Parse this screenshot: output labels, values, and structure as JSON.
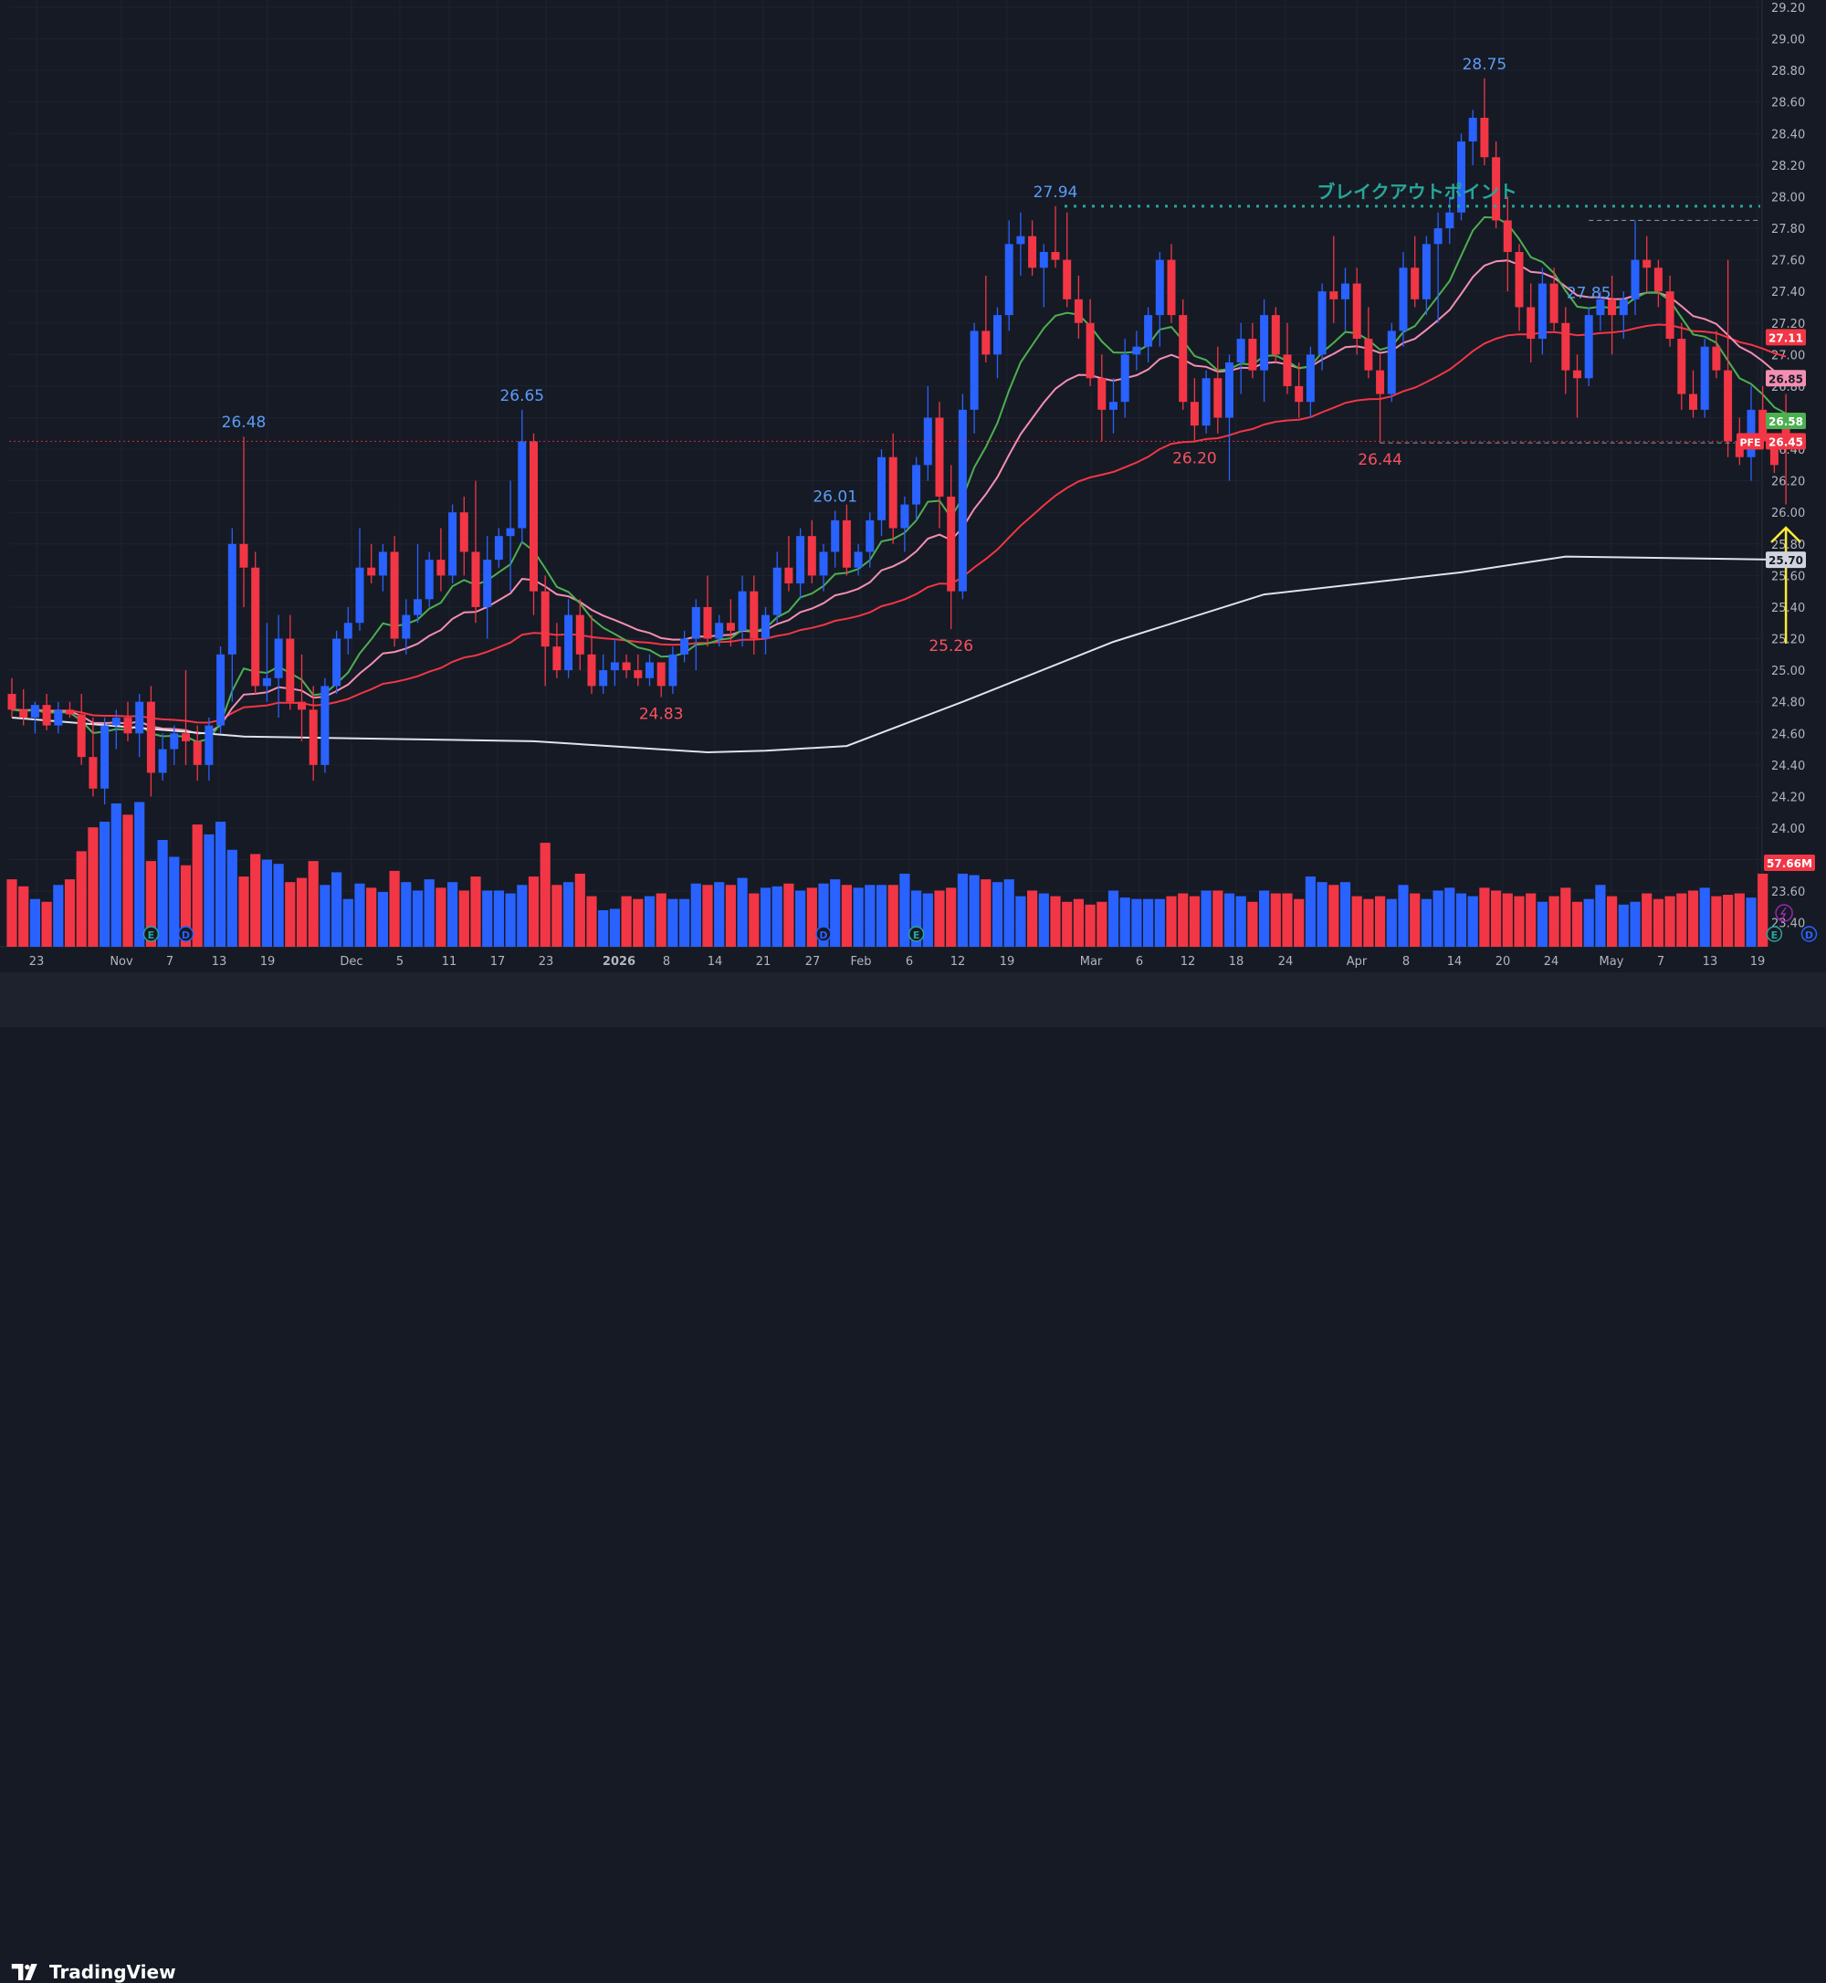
{
  "brand": {
    "name": "TradingView",
    "logo_icon": "tradingview-logo-icon"
  },
  "chart_data": {
    "type": "candlestick",
    "ticker": "PFE",
    "last_price": "26.45",
    "y_range": [
      23.3,
      29.2
    ],
    "y_ticks": [
      "29.20",
      "29.00",
      "28.80",
      "28.60",
      "28.40",
      "28.20",
      "28.00",
      "27.80",
      "27.60",
      "27.40",
      "27.20",
      "27.00",
      "26.80",
      "26.60",
      "26.40",
      "26.20",
      "26.00",
      "25.80",
      "25.60",
      "25.40",
      "25.20",
      "25.00",
      "24.80",
      "24.60",
      "24.40",
      "24.20",
      "24.00",
      "23.80",
      "23.60",
      "23.40"
    ],
    "x_ticks": [
      "23",
      "Nov",
      "7",
      "13",
      "19",
      "Dec",
      "5",
      "11",
      "17",
      "23",
      "2026",
      "8",
      "14",
      "21",
      "27",
      "Feb",
      "6",
      "12",
      "19",
      "Mar",
      "6",
      "12",
      "18",
      "24",
      "Apr",
      "8",
      "14",
      "20",
      "24",
      "May",
      "7",
      "13",
      "19"
    ],
    "candles": [
      [
        24.85,
        24.95,
        24.7,
        24.75
      ],
      [
        24.75,
        24.88,
        24.65,
        24.7
      ],
      [
        24.7,
        24.8,
        24.6,
        24.78
      ],
      [
        24.78,
        24.85,
        24.62,
        24.65
      ],
      [
        24.65,
        24.8,
        24.6,
        24.75
      ],
      [
        24.75,
        24.8,
        24.7,
        24.72
      ],
      [
        24.72,
        24.85,
        24.4,
        24.45
      ],
      [
        24.45,
        24.7,
        24.2,
        24.25
      ],
      [
        24.25,
        24.7,
        24.15,
        24.65
      ],
      [
        24.65,
        24.75,
        24.5,
        24.7
      ],
      [
        24.7,
        24.8,
        24.55,
        24.6
      ],
      [
        24.6,
        24.85,
        24.45,
        24.8
      ],
      [
        24.8,
        24.9,
        24.2,
        24.35
      ],
      [
        24.35,
        24.6,
        24.3,
        24.5
      ],
      [
        24.5,
        24.65,
        24.4,
        24.6
      ],
      [
        24.6,
        25.0,
        24.4,
        24.55
      ],
      [
        24.55,
        24.65,
        24.3,
        24.4
      ],
      [
        24.4,
        24.7,
        24.3,
        24.65
      ],
      [
        24.65,
        25.15,
        24.6,
        25.1
      ],
      [
        25.1,
        25.9,
        24.8,
        25.8
      ],
      [
        25.8,
        26.48,
        25.4,
        25.65
      ],
      [
        25.65,
        25.75,
        24.85,
        24.9
      ],
      [
        24.9,
        25.3,
        24.8,
        24.95
      ],
      [
        24.95,
        25.35,
        24.7,
        25.2
      ],
      [
        25.2,
        25.35,
        24.75,
        24.8
      ],
      [
        24.8,
        25.1,
        24.55,
        24.75
      ],
      [
        24.75,
        24.9,
        24.3,
        24.4
      ],
      [
        24.4,
        24.95,
        24.35,
        24.9
      ],
      [
        24.9,
        25.25,
        24.85,
        25.2
      ],
      [
        25.2,
        25.4,
        25.1,
        25.3
      ],
      [
        25.3,
        25.9,
        25.25,
        25.65
      ],
      [
        25.65,
        25.8,
        25.55,
        25.6
      ],
      [
        25.6,
        25.8,
        25.5,
        25.75
      ],
      [
        25.75,
        25.85,
        25.15,
        25.2
      ],
      [
        25.2,
        25.45,
        25.1,
        25.35
      ],
      [
        25.35,
        25.8,
        25.3,
        25.45
      ],
      [
        25.45,
        25.75,
        25.4,
        25.7
      ],
      [
        25.7,
        25.9,
        25.5,
        25.6
      ],
      [
        25.6,
        26.05,
        25.55,
        26.0
      ],
      [
        26.0,
        26.1,
        25.6,
        25.75
      ],
      [
        25.75,
        26.2,
        25.3,
        25.4
      ],
      [
        25.4,
        25.85,
        25.2,
        25.7
      ],
      [
        25.7,
        25.9,
        25.65,
        25.85
      ],
      [
        25.85,
        26.2,
        25.5,
        25.9
      ],
      [
        25.9,
        26.65,
        25.8,
        26.45
      ],
      [
        26.45,
        26.5,
        25.35,
        25.5
      ],
      [
        25.5,
        25.6,
        24.9,
        25.15
      ],
      [
        25.15,
        25.3,
        24.95,
        25.0
      ],
      [
        25.0,
        25.45,
        24.95,
        25.35
      ],
      [
        25.35,
        25.45,
        25.0,
        25.1
      ],
      [
        25.1,
        25.35,
        24.85,
        24.9
      ],
      [
        24.9,
        25.1,
        24.85,
        25.0
      ],
      [
        25.0,
        25.2,
        24.9,
        25.05
      ],
      [
        25.05,
        25.1,
        24.95,
        25.0
      ],
      [
        25.0,
        25.1,
        24.9,
        24.95
      ],
      [
        24.95,
        25.1,
        24.9,
        25.05
      ],
      [
        25.05,
        25.0,
        24.83,
        24.9
      ],
      [
        24.9,
        25.15,
        24.85,
        25.1
      ],
      [
        25.1,
        25.25,
        25.05,
        25.2
      ],
      [
        25.2,
        25.45,
        25.0,
        25.4
      ],
      [
        25.4,
        25.6,
        25.15,
        25.2
      ],
      [
        25.2,
        25.35,
        25.15,
        25.3
      ],
      [
        25.3,
        25.45,
        25.15,
        25.25
      ],
      [
        25.25,
        25.6,
        25.15,
        25.5
      ],
      [
        25.5,
        25.6,
        25.1,
        25.2
      ],
      [
        25.2,
        25.4,
        25.1,
        25.35
      ],
      [
        25.35,
        25.75,
        25.3,
        25.65
      ],
      [
        25.65,
        25.85,
        25.5,
        25.55
      ],
      [
        25.55,
        25.9,
        25.45,
        25.85
      ],
      [
        25.85,
        25.95,
        25.55,
        25.6
      ],
      [
        25.6,
        25.8,
        25.5,
        25.75
      ],
      [
        25.75,
        26.01,
        25.65,
        25.95
      ],
      [
        25.95,
        26.05,
        25.6,
        25.65
      ],
      [
        25.65,
        25.8,
        25.6,
        25.75
      ],
      [
        25.75,
        26.0,
        25.65,
        25.95
      ],
      [
        25.95,
        26.4,
        25.85,
        26.35
      ],
      [
        26.35,
        26.5,
        25.8,
        25.9
      ],
      [
        25.9,
        26.1,
        25.75,
        26.05
      ],
      [
        26.05,
        26.35,
        25.95,
        26.3
      ],
      [
        26.3,
        26.8,
        26.2,
        26.6
      ],
      [
        26.6,
        26.7,
        25.9,
        26.1
      ],
      [
        26.1,
        26.3,
        25.26,
        25.5
      ],
      [
        25.5,
        26.75,
        25.45,
        26.65
      ],
      [
        26.65,
        27.2,
        26.5,
        27.15
      ],
      [
        27.15,
        27.5,
        26.95,
        27.0
      ],
      [
        27.0,
        27.3,
        26.85,
        27.25
      ],
      [
        27.25,
        27.85,
        27.15,
        27.7
      ],
      [
        27.7,
        27.9,
        27.5,
        27.75
      ],
      [
        27.75,
        27.85,
        27.5,
        27.55
      ],
      [
        27.55,
        27.7,
        27.3,
        27.65
      ],
      [
        27.65,
        27.94,
        27.55,
        27.6
      ],
      [
        27.6,
        27.9,
        27.3,
        27.35
      ],
      [
        27.35,
        27.5,
        27.1,
        27.2
      ],
      [
        27.2,
        27.35,
        26.8,
        26.85
      ],
      [
        26.85,
        27.0,
        26.45,
        26.65
      ],
      [
        26.65,
        26.85,
        26.5,
        26.7
      ],
      [
        26.7,
        27.1,
        26.6,
        27.0
      ],
      [
        27.0,
        27.15,
        26.9,
        27.05
      ],
      [
        27.05,
        27.3,
        26.95,
        27.25
      ],
      [
        27.25,
        27.65,
        27.05,
        27.6
      ],
      [
        27.6,
        27.7,
        27.2,
        27.25
      ],
      [
        27.25,
        27.35,
        26.65,
        26.7
      ],
      [
        26.7,
        26.85,
        26.45,
        26.55
      ],
      [
        26.55,
        26.9,
        26.5,
        26.85
      ],
      [
        26.85,
        27.05,
        26.5,
        26.6
      ],
      [
        26.6,
        27.0,
        26.2,
        26.95
      ],
      [
        26.95,
        27.2,
        26.75,
        27.1
      ],
      [
        27.1,
        27.2,
        26.85,
        26.9
      ],
      [
        26.9,
        27.35,
        26.7,
        27.25
      ],
      [
        27.25,
        27.3,
        26.95,
        27.0
      ],
      [
        27.0,
        27.2,
        26.75,
        26.8
      ],
      [
        26.8,
        26.95,
        26.6,
        26.7
      ],
      [
        26.7,
        27.05,
        26.6,
        27.0
      ],
      [
        27.0,
        27.45,
        26.9,
        27.4
      ],
      [
        27.4,
        27.75,
        27.2,
        27.35
      ],
      [
        27.35,
        27.55,
        27.15,
        27.45
      ],
      [
        27.45,
        27.55,
        27.0,
        27.1
      ],
      [
        27.1,
        27.3,
        26.85,
        26.9
      ],
      [
        26.9,
        27.0,
        26.44,
        26.75
      ],
      [
        26.75,
        27.2,
        26.7,
        27.15
      ],
      [
        27.15,
        27.65,
        27.05,
        27.55
      ],
      [
        27.55,
        27.75,
        27.3,
        27.35
      ],
      [
        27.35,
        27.75,
        27.25,
        27.7
      ],
      [
        27.7,
        27.9,
        27.2,
        27.8
      ],
      [
        27.8,
        28.0,
        27.7,
        27.9
      ],
      [
        27.9,
        28.4,
        27.85,
        28.35
      ],
      [
        28.35,
        28.55,
        28.2,
        28.5
      ],
      [
        28.5,
        28.75,
        28.2,
        28.25
      ],
      [
        28.25,
        28.35,
        27.8,
        27.85
      ],
      [
        27.85,
        28.0,
        27.4,
        27.65
      ],
      [
        27.65,
        27.7,
        27.15,
        27.3
      ],
      [
        27.3,
        27.45,
        26.95,
        27.1
      ],
      [
        27.1,
        27.55,
        27.0,
        27.45
      ],
      [
        27.45,
        27.55,
        27.15,
        27.2
      ],
      [
        27.2,
        27.3,
        26.75,
        26.9
      ],
      [
        26.9,
        27.0,
        26.6,
        26.85
      ],
      [
        26.85,
        27.3,
        26.8,
        27.25
      ],
      [
        27.25,
        27.4,
        27.15,
        27.35
      ],
      [
        27.35,
        27.5,
        27.0,
        27.25
      ],
      [
        27.25,
        27.4,
        27.1,
        27.35
      ],
      [
        27.35,
        27.85,
        27.25,
        27.6
      ],
      [
        27.6,
        27.75,
        27.4,
        27.55
      ],
      [
        27.55,
        27.6,
        27.3,
        27.4
      ],
      [
        27.4,
        27.5,
        27.05,
        27.1
      ],
      [
        27.1,
        27.2,
        26.65,
        26.75
      ],
      [
        26.75,
        26.9,
        26.6,
        26.65
      ],
      [
        26.65,
        27.1,
        26.6,
        27.05
      ],
      [
        27.05,
        27.15,
        26.85,
        26.9
      ],
      [
        26.9,
        27.6,
        26.35,
        26.45
      ],
      [
        26.45,
        26.6,
        26.3,
        26.35
      ],
      [
        26.35,
        26.8,
        26.2,
        26.65
      ],
      [
        26.65,
        26.8,
        26.4,
        26.45
      ],
      [
        26.45,
        26.5,
        26.25,
        26.3
      ],
      [
        26.58,
        26.75,
        26.05,
        26.45
      ]
    ],
    "volume_scale_max_m": 115,
    "volume_m": [
      48,
      43,
      34,
      32,
      44,
      48,
      68,
      85,
      89,
      102,
      94,
      103,
      61,
      76,
      64,
      58,
      87,
      80,
      89,
      69,
      50,
      66,
      62,
      59,
      46,
      49,
      61,
      44,
      53,
      34,
      45,
      42,
      39,
      54,
      46,
      40,
      48,
      42,
      46,
      40,
      50,
      40,
      40,
      38,
      44,
      50,
      74,
      44,
      46,
      52,
      36,
      26,
      27,
      36,
      34,
      36,
      38,
      34,
      34,
      45,
      44,
      46,
      44,
      49,
      38,
      42,
      43,
      45,
      40,
      42,
      45,
      48,
      44,
      42,
      44,
      44,
      44,
      52,
      40,
      38,
      40,
      42,
      52,
      51,
      48,
      46,
      48,
      36,
      40,
      38,
      36,
      32,
      34,
      30,
      32,
      40,
      35,
      34,
      34,
      34,
      36,
      38,
      36,
      40,
      40,
      38,
      36,
      32,
      40,
      38,
      38,
      34,
      50,
      46,
      44,
      46,
      36,
      34,
      36,
      34,
      44,
      38,
      34,
      40,
      42,
      38,
      36,
      42,
      40,
      38,
      36,
      38,
      32,
      36,
      42,
      32,
      34,
      44,
      36,
      30,
      32,
      38,
      34,
      36,
      38,
      40,
      42,
      36,
      37,
      38,
      35,
      52
    ],
    "volume_last_label": "57.66M",
    "moving_averages": [
      {
        "color": "#4caf50",
        "last": "26.58"
      },
      {
        "color": "#f48fb1",
        "last": "26.85"
      },
      {
        "color": "#f23645",
        "last": "27.11"
      },
      {
        "color": "#e0e3eb",
        "last": "25.70"
      }
    ],
    "ma200_points": [
      [
        0,
        24.7
      ],
      [
        20,
        24.58
      ],
      [
        45,
        24.55
      ],
      [
        60,
        24.48
      ],
      [
        65,
        24.49
      ],
      [
        72,
        24.52
      ],
      [
        82,
        24.8
      ],
      [
        95,
        25.18
      ],
      [
        108,
        25.48
      ],
      [
        125,
        25.62
      ],
      [
        134,
        25.72
      ],
      [
        153,
        25.7
      ]
    ],
    "price_annotations": [
      {
        "text": "26.48",
        "bar": 20,
        "kind": "high"
      },
      {
        "text": "26.65",
        "bar": 44,
        "kind": "high"
      },
      {
        "text": "26.01",
        "bar": 71,
        "kind": "high"
      },
      {
        "text": "27.94",
        "bar": 90,
        "kind": "high"
      },
      {
        "text": "28.75",
        "bar": 127,
        "kind": "high"
      },
      {
        "text": "27.85",
        "bar": 136,
        "kind": "high"
      },
      {
        "text": "24.83",
        "bar": 56,
        "kind": "low"
      },
      {
        "text": "25.26",
        "bar": 81,
        "kind": "low"
      },
      {
        "text": "26.20",
        "bar": 102,
        "kind": "low"
      },
      {
        "text": "26.44",
        "bar": 118,
        "kind": "low"
      }
    ],
    "breakout_label": "ブレイクアウトポイント",
    "breakout_level": 27.94,
    "events": [
      {
        "text": "E",
        "bar": 12,
        "color": "#26a69a"
      },
      {
        "text": "D",
        "bar": 15,
        "color": "#2962ff"
      },
      {
        "text": "D",
        "bar": 70,
        "color": "#2962ff"
      },
      {
        "text": "E",
        "bar": 78,
        "color": "#26a69a"
      },
      {
        "text": "E",
        "bar": 152,
        "color": "#26a69a"
      },
      {
        "text": "D",
        "bar": 155,
        "color": "#2962ff"
      }
    ],
    "colors": {
      "up": "#2962ff",
      "down": "#f23645",
      "background": "#161a25",
      "grid": "#1f2330",
      "axis_text": "#b2b5be",
      "breakout": "#26a69a",
      "arrow": "#ffeb3b",
      "high_label": "#5b9cf6",
      "low_label": "#f7525f"
    }
  }
}
